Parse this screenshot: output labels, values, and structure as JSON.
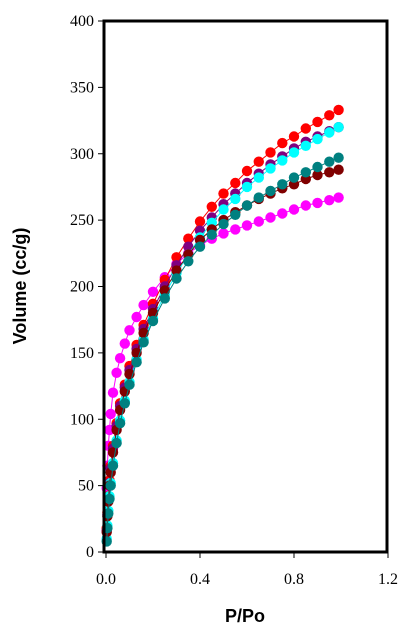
{
  "chart_data": {
    "type": "scatter",
    "title": "",
    "xlabel": "P/Po",
    "ylabel": "Volume (cc/g)",
    "xlim": [
      0.0,
      1.2
    ],
    "ylim": [
      0,
      400
    ],
    "x_ticks": [
      "0.0",
      "0.4",
      "0.8",
      "1.2"
    ],
    "y_ticks": [
      "0",
      "50",
      "100",
      "150",
      "200",
      "250",
      "300",
      "350",
      "400"
    ],
    "grid": false,
    "legend": "none",
    "series": [
      {
        "color": "#ff00ff",
        "points": [
          [
            0.003,
            48
          ],
          [
            0.006,
            65
          ],
          [
            0.01,
            80
          ],
          [
            0.015,
            92
          ],
          [
            0.02,
            104
          ],
          [
            0.03,
            120
          ],
          [
            0.045,
            135
          ],
          [
            0.06,
            146
          ],
          [
            0.08,
            157
          ],
          [
            0.1,
            167
          ],
          [
            0.13,
            177
          ],
          [
            0.16,
            186
          ],
          [
            0.2,
            196
          ],
          [
            0.25,
            207
          ],
          [
            0.3,
            217
          ],
          [
            0.35,
            225
          ],
          [
            0.4,
            231
          ],
          [
            0.45,
            236
          ],
          [
            0.5,
            240
          ],
          [
            0.55,
            243
          ],
          [
            0.6,
            246
          ],
          [
            0.65,
            249
          ],
          [
            0.7,
            252
          ],
          [
            0.75,
            255
          ],
          [
            0.8,
            258
          ],
          [
            0.85,
            261
          ],
          [
            0.9,
            263
          ],
          [
            0.95,
            265
          ],
          [
            0.99,
            267
          ]
        ]
      },
      {
        "color": "#ff0000",
        "points": [
          [
            0.003,
            18
          ],
          [
            0.006,
            30
          ],
          [
            0.01,
            42
          ],
          [
            0.015,
            54
          ],
          [
            0.02,
            65
          ],
          [
            0.03,
            80
          ],
          [
            0.045,
            97
          ],
          [
            0.06,
            112
          ],
          [
            0.08,
            126
          ],
          [
            0.1,
            140
          ],
          [
            0.13,
            156
          ],
          [
            0.16,
            171
          ],
          [
            0.2,
            187
          ],
          [
            0.25,
            205
          ],
          [
            0.3,
            222
          ],
          [
            0.35,
            236
          ],
          [
            0.4,
            249
          ],
          [
            0.45,
            260
          ],
          [
            0.5,
            270
          ],
          [
            0.55,
            278
          ],
          [
            0.6,
            287
          ],
          [
            0.65,
            294
          ],
          [
            0.7,
            301
          ],
          [
            0.75,
            308
          ],
          [
            0.8,
            313
          ],
          [
            0.85,
            319
          ],
          [
            0.9,
            324
          ],
          [
            0.95,
            329
          ],
          [
            0.99,
            333
          ]
        ]
      },
      {
        "color": "#800080",
        "points": [
          [
            0.003,
            16
          ],
          [
            0.006,
            28
          ],
          [
            0.01,
            40
          ],
          [
            0.015,
            52
          ],
          [
            0.02,
            63
          ],
          [
            0.03,
            78
          ],
          [
            0.045,
            95
          ],
          [
            0.06,
            110
          ],
          [
            0.08,
            124
          ],
          [
            0.1,
            137
          ],
          [
            0.13,
            153
          ],
          [
            0.16,
            168
          ],
          [
            0.2,
            183
          ],
          [
            0.25,
            200
          ],
          [
            0.3,
            216
          ],
          [
            0.35,
            230
          ],
          [
            0.4,
            242
          ],
          [
            0.45,
            252
          ],
          [
            0.5,
            262
          ],
          [
            0.55,
            270
          ],
          [
            0.6,
            278
          ],
          [
            0.65,
            285
          ],
          [
            0.7,
            292
          ],
          [
            0.75,
            298
          ],
          [
            0.8,
            304
          ],
          [
            0.85,
            309
          ],
          [
            0.9,
            313
          ],
          [
            0.95,
            317
          ],
          [
            0.99,
            320
          ]
        ]
      },
      {
        "color": "#00ffff",
        "points": [
          [
            0.003,
            10
          ],
          [
            0.006,
            20
          ],
          [
            0.01,
            31
          ],
          [
            0.015,
            42
          ],
          [
            0.02,
            52
          ],
          [
            0.03,
            67
          ],
          [
            0.045,
            84
          ],
          [
            0.06,
            99
          ],
          [
            0.08,
            114
          ],
          [
            0.1,
            128
          ],
          [
            0.13,
            145
          ],
          [
            0.16,
            160
          ],
          [
            0.2,
            176
          ],
          [
            0.25,
            194
          ],
          [
            0.3,
            210
          ],
          [
            0.35,
            224
          ],
          [
            0.4,
            237
          ],
          [
            0.45,
            248
          ],
          [
            0.5,
            258
          ],
          [
            0.55,
            266
          ],
          [
            0.6,
            275
          ],
          [
            0.65,
            282
          ],
          [
            0.7,
            289
          ],
          [
            0.75,
            295
          ],
          [
            0.8,
            301
          ],
          [
            0.85,
            306
          ],
          [
            0.9,
            311
          ],
          [
            0.95,
            316
          ],
          [
            0.99,
            320
          ]
        ]
      },
      {
        "color": "#800000",
        "points": [
          [
            0.003,
            15
          ],
          [
            0.006,
            27
          ],
          [
            0.01,
            38
          ],
          [
            0.015,
            50
          ],
          [
            0.02,
            60
          ],
          [
            0.03,
            75
          ],
          [
            0.045,
            92
          ],
          [
            0.06,
            107
          ],
          [
            0.08,
            121
          ],
          [
            0.1,
            134
          ],
          [
            0.13,
            150
          ],
          [
            0.16,
            165
          ],
          [
            0.2,
            180
          ],
          [
            0.25,
            197
          ],
          [
            0.3,
            212
          ],
          [
            0.35,
            224
          ],
          [
            0.4,
            235
          ],
          [
            0.45,
            243
          ],
          [
            0.5,
            250
          ],
          [
            0.55,
            256
          ],
          [
            0.6,
            261
          ],
          [
            0.65,
            266
          ],
          [
            0.7,
            270
          ],
          [
            0.75,
            274
          ],
          [
            0.8,
            277
          ],
          [
            0.85,
            281
          ],
          [
            0.9,
            284
          ],
          [
            0.95,
            286
          ],
          [
            0.99,
            288
          ]
        ]
      },
      {
        "color": "#008080",
        "points": [
          [
            0.003,
            8
          ],
          [
            0.006,
            18
          ],
          [
            0.01,
            29
          ],
          [
            0.015,
            40
          ],
          [
            0.02,
            50
          ],
          [
            0.03,
            65
          ],
          [
            0.045,
            82
          ],
          [
            0.06,
            97
          ],
          [
            0.08,
            112
          ],
          [
            0.1,
            126
          ],
          [
            0.13,
            143
          ],
          [
            0.16,
            158
          ],
          [
            0.2,
            174
          ],
          [
            0.25,
            191
          ],
          [
            0.3,
            206
          ],
          [
            0.35,
            219
          ],
          [
            0.4,
            230
          ],
          [
            0.45,
            239
          ],
          [
            0.5,
            247
          ],
          [
            0.55,
            254
          ],
          [
            0.6,
            261
          ],
          [
            0.65,
            267
          ],
          [
            0.7,
            272
          ],
          [
            0.75,
            277
          ],
          [
            0.8,
            282
          ],
          [
            0.85,
            286
          ],
          [
            0.9,
            290
          ],
          [
            0.95,
            294
          ],
          [
            0.99,
            297
          ]
        ]
      }
    ]
  }
}
